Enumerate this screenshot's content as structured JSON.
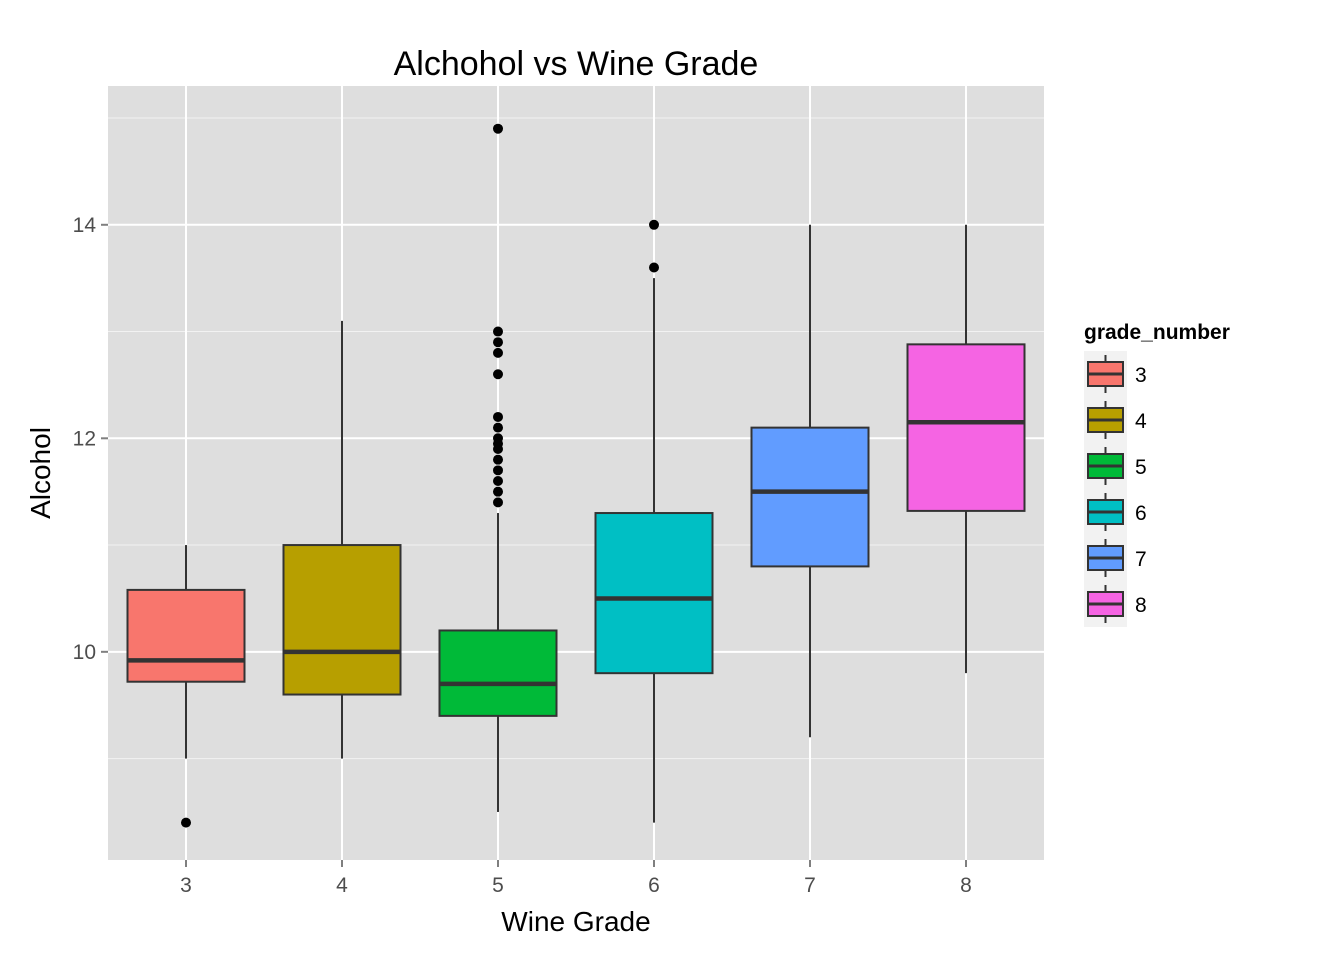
{
  "chart_data": {
    "type": "boxplot",
    "title": "Alchohol vs Wine Grade",
    "xlabel": "Wine Grade",
    "ylabel": "Alcohol",
    "ylim": [
      8.05,
      15.3
    ],
    "y_ticks": [
      10,
      12,
      14
    ],
    "grid": true,
    "legend": {
      "title": "grade_number",
      "placement": "right",
      "entries": [
        "3",
        "4",
        "5",
        "6",
        "7",
        "8"
      ]
    },
    "categories": [
      "3",
      "4",
      "5",
      "6",
      "7",
      "8"
    ],
    "series": [
      {
        "category": "3",
        "color": "#F8766D",
        "whisker_low": 9.0,
        "q1": 9.72,
        "median": 9.92,
        "q3": 10.58,
        "whisker_high": 11.0,
        "outliers": [
          8.4
        ]
      },
      {
        "category": "4",
        "color": "#B79F00",
        "whisker_low": 9.0,
        "q1": 9.6,
        "median": 10.0,
        "q3": 11.0,
        "whisker_high": 13.1,
        "outliers": []
      },
      {
        "category": "5",
        "color": "#00BA38",
        "whisker_low": 8.5,
        "q1": 9.4,
        "median": 9.7,
        "q3": 10.2,
        "whisker_high": 11.3,
        "outliers": [
          11.4,
          11.5,
          11.6,
          11.7,
          11.8,
          11.9,
          11.95,
          12.0,
          12.1,
          12.2,
          12.6,
          12.8,
          12.9,
          13.0,
          14.9
        ]
      },
      {
        "category": "6",
        "color": "#00BFC4",
        "whisker_low": 8.4,
        "q1": 9.8,
        "median": 10.5,
        "q3": 11.3,
        "whisker_high": 13.5,
        "outliers": [
          13.6,
          14.0
        ]
      },
      {
        "category": "7",
        "color": "#619CFF",
        "whisker_low": 9.2,
        "q1": 10.8,
        "median": 11.5,
        "q3": 12.1,
        "whisker_high": 14.0,
        "outliers": []
      },
      {
        "category": "8",
        "color": "#F564E3",
        "whisker_low": 9.8,
        "q1": 11.32,
        "median": 12.15,
        "q3": 12.88,
        "whisker_high": 14.0,
        "outliers": []
      }
    ]
  }
}
